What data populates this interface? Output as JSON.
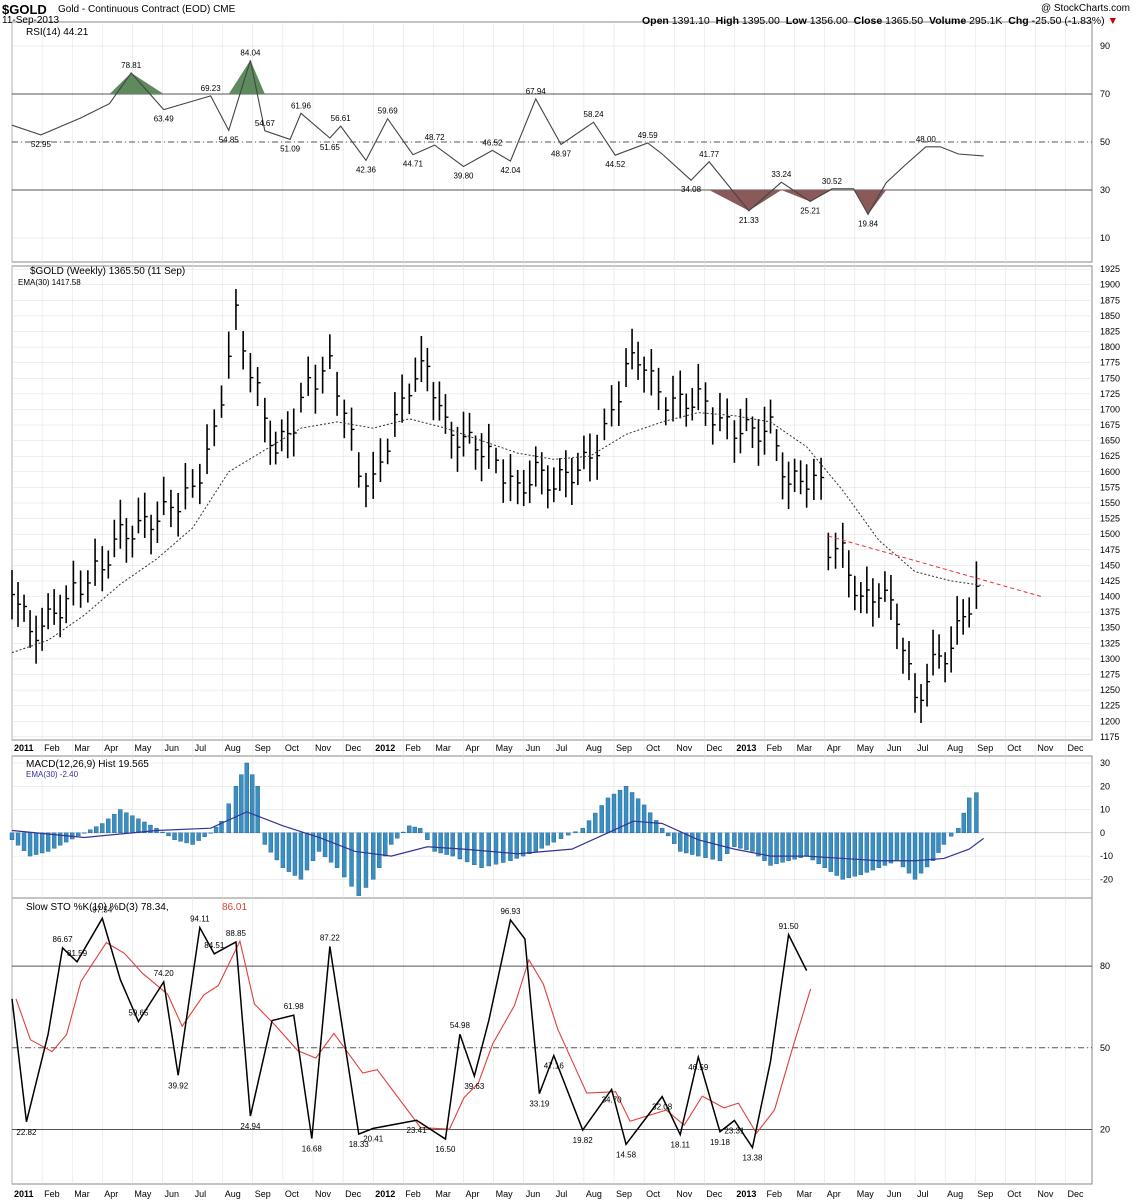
{
  "header": {
    "symbol": "$GOLD",
    "name": "Gold - Continuous Contract (EOD)",
    "exchange": "CME",
    "credit": "@ StockCharts.com",
    "date": "11-Sep-2013",
    "open_label": "Open",
    "open": "1391.10",
    "high_label": "High",
    "high": "1395.00",
    "low_label": "Low",
    "low": "1356.00",
    "close_label": "Close",
    "close": "1365.50",
    "volume_label": "Volume",
    "volume": "295.1K",
    "chg_label": "Chg",
    "chg": "-25.50 (-1.83%)",
    "chg_icon": "down-triangle-icon"
  },
  "colors": {
    "positive_fill": "#5e8a5e",
    "negative_fill": "#8a5a5a",
    "macd_hist": "#3a8fc2",
    "macd_ema": "#333399",
    "sto_d": "#e0403a",
    "trendline": "#e83030",
    "grid": "#dddddd"
  },
  "chart_data": [
    {
      "type": "line",
      "panel": "rsi",
      "legend": "RSI(14) 44.21",
      "ylim": [
        0,
        100
      ],
      "y_ticks": [
        10,
        30,
        50,
        70,
        90
      ],
      "reference_lines": [
        30,
        50,
        70
      ],
      "labels": [
        "52.95",
        "78.81",
        "63.49",
        "69.23",
        "54.85",
        "84.04",
        "54.67",
        "51.09",
        "61.96",
        "51.65",
        "56.61",
        "42.36",
        "59.69",
        "44.71",
        "48.72",
        "39.80",
        "46.52",
        "42.04",
        "67.94",
        "48.97",
        "58.24",
        "44.52",
        "49.59",
        "34.08",
        "41.77",
        "21.33",
        "33.24",
        "25.21",
        "30.52",
        "19.84",
        "48.00"
      ],
      "x": [
        2011.0,
        2011.08,
        2011.19,
        2011.27,
        2011.33,
        2011.42,
        2011.55,
        2011.6,
        2011.66,
        2011.7,
        2011.77,
        2011.8,
        2011.88,
        2011.91,
        2011.98,
        2012.04,
        2012.11,
        2012.17,
        2012.25,
        2012.33,
        2012.38,
        2012.45,
        2012.52,
        2012.61,
        2012.67,
        2012.76,
        2012.8,
        2012.88,
        2012.93,
        2013.04,
        2013.13,
        2013.21,
        2013.27,
        2013.33,
        2013.37,
        2013.42,
        2013.47,
        2013.53,
        2013.57,
        2013.62,
        2013.69
      ],
      "values": [
        57,
        52.95,
        60,
        66,
        78.81,
        63.49,
        69.23,
        54.85,
        84.04,
        54.67,
        51.09,
        61.96,
        51.65,
        56.61,
        42.36,
        59.69,
        44.71,
        48.72,
        39.8,
        46.52,
        42.04,
        67.94,
        48.97,
        58.24,
        44.52,
        49.59,
        45,
        34.08,
        41.77,
        21.33,
        33.24,
        25.21,
        30.52,
        30.52,
        19.84,
        33,
        40,
        48.0,
        48.0,
        45,
        44.21
      ]
    },
    {
      "type": "bar",
      "panel": "price",
      "legend": "$GOLD (Weekly) 1365.50 (11 Sep)",
      "legend2": "EMA(30) 1417.58",
      "ylim": [
        1170,
        1930
      ],
      "y_ticks": [
        1175,
        1200,
        1225,
        1250,
        1275,
        1300,
        1325,
        1350,
        1375,
        1400,
        1425,
        1450,
        1475,
        1500,
        1525,
        1550,
        1575,
        1600,
        1625,
        1650,
        1675,
        1700,
        1725,
        1750,
        1775,
        1800,
        1825,
        1850,
        1875,
        1900,
        1925
      ],
      "close_points": [
        [
          2011.0,
          1420
        ],
        [
          2011.05,
          1340
        ],
        [
          2011.1,
          1362
        ],
        [
          2011.15,
          1395
        ],
        [
          2011.25,
          1450
        ],
        [
          2011.3,
          1500
        ],
        [
          2011.35,
          1510
        ],
        [
          2011.42,
          1535
        ],
        [
          2011.5,
          1570
        ],
        [
          2011.56,
          1660
        ],
        [
          2011.62,
          1850
        ],
        [
          2011.66,
          1760
        ],
        [
          2011.7,
          1690
        ],
        [
          2011.73,
          1630
        ],
        [
          2011.78,
          1680
        ],
        [
          2011.82,
          1740
        ],
        [
          2011.88,
          1770
        ],
        [
          2011.92,
          1700
        ],
        [
          2011.96,
          1600
        ],
        [
          2012.0,
          1580
        ],
        [
          2012.04,
          1650
        ],
        [
          2012.1,
          1740
        ],
        [
          2012.15,
          1770
        ],
        [
          2012.2,
          1670
        ],
        [
          2012.25,
          1650
        ],
        [
          2012.3,
          1640
        ],
        [
          2012.36,
          1600
        ],
        [
          2012.4,
          1570
        ],
        [
          2012.45,
          1600
        ],
        [
          2012.5,
          1580
        ],
        [
          2012.55,
          1600
        ],
        [
          2012.6,
          1620
        ],
        [
          2012.66,
          1690
        ],
        [
          2012.7,
          1770
        ],
        [
          2012.75,
          1780
        ],
        [
          2012.79,
          1720
        ],
        [
          2012.85,
          1710
        ],
        [
          2012.9,
          1720
        ],
        [
          2012.96,
          1680
        ],
        [
          2013.0,
          1670
        ],
        [
          2013.05,
          1665
        ],
        [
          2013.1,
          1670
        ],
        [
          2013.15,
          1580
        ],
        [
          2013.2,
          1590
        ],
        [
          2013.24,
          1580
        ],
        [
          2013.26,
          1480
        ],
        [
          2013.3,
          1470
        ],
        [
          2013.35,
          1390
        ],
        [
          2013.4,
          1410
        ],
        [
          2013.45,
          1370
        ],
        [
          2013.5,
          1230
        ],
        [
          2013.55,
          1290
        ],
        [
          2013.6,
          1320
        ],
        [
          2013.65,
          1390
        ],
        [
          2013.67,
          1410
        ],
        [
          2013.69,
          1365.5
        ]
      ],
      "ema30_points": [
        [
          2011.0,
          1310
        ],
        [
          2011.1,
          1330
        ],
        [
          2011.2,
          1370
        ],
        [
          2011.3,
          1420
        ],
        [
          2011.4,
          1460
        ],
        [
          2011.5,
          1510
        ],
        [
          2011.6,
          1600
        ],
        [
          2011.7,
          1635
        ],
        [
          2011.8,
          1670
        ],
        [
          2011.9,
          1680
        ],
        [
          2012.0,
          1670
        ],
        [
          2012.1,
          1685
        ],
        [
          2012.2,
          1670
        ],
        [
          2012.3,
          1650
        ],
        [
          2012.4,
          1630
        ],
        [
          2012.5,
          1620
        ],
        [
          2012.6,
          1625
        ],
        [
          2012.7,
          1660
        ],
        [
          2012.8,
          1680
        ],
        [
          2012.9,
          1695
        ],
        [
          2013.0,
          1690
        ],
        [
          2013.1,
          1680
        ],
        [
          2013.2,
          1640
        ],
        [
          2013.3,
          1570
        ],
        [
          2013.4,
          1490
        ],
        [
          2013.5,
          1440
        ],
        [
          2013.6,
          1425
        ],
        [
          2013.69,
          1417.58
        ]
      ],
      "trendline": [
        [
          2013.26,
          1497
        ],
        [
          2013.85,
          1400
        ]
      ]
    },
    {
      "type": "bar",
      "panel": "macd",
      "legend": "MACD(12,26,9) Hist 19.565",
      "legend2": "EMA(30) -2.40",
      "ylim": [
        -28,
        33
      ],
      "y_ticks": [
        -20,
        -10,
        0,
        10,
        20,
        30
      ],
      "histogram_points": [
        [
          2011.0,
          -3
        ],
        [
          2011.05,
          -10
        ],
        [
          2011.1,
          -8
        ],
        [
          2011.15,
          -4
        ],
        [
          2011.2,
          0
        ],
        [
          2011.25,
          4
        ],
        [
          2011.3,
          10
        ],
        [
          2011.35,
          6
        ],
        [
          2011.4,
          2
        ],
        [
          2011.45,
          -3
        ],
        [
          2011.5,
          -5
        ],
        [
          2011.55,
          0
        ],
        [
          2011.58,
          5
        ],
        [
          2011.62,
          20
        ],
        [
          2011.65,
          30
        ],
        [
          2011.68,
          20
        ],
        [
          2011.7,
          -5
        ],
        [
          2011.75,
          -15
        ],
        [
          2011.8,
          -20
        ],
        [
          2011.85,
          -8
        ],
        [
          2011.9,
          -15
        ],
        [
          2011.96,
          -27
        ],
        [
          2012.0,
          -20
        ],
        [
          2012.05,
          -5
        ],
        [
          2012.1,
          3
        ],
        [
          2012.13,
          2
        ],
        [
          2012.17,
          -8
        ],
        [
          2012.22,
          -10
        ],
        [
          2012.3,
          -15
        ],
        [
          2012.38,
          -12
        ],
        [
          2012.45,
          -8
        ],
        [
          2012.5,
          -4
        ],
        [
          2012.58,
          2
        ],
        [
          2012.65,
          15
        ],
        [
          2012.7,
          20
        ],
        [
          2012.75,
          12
        ],
        [
          2012.8,
          2
        ],
        [
          2012.85,
          -8
        ],
        [
          2012.9,
          -10
        ],
        [
          2012.96,
          -12
        ],
        [
          2013.0,
          -6
        ],
        [
          2013.05,
          -8
        ],
        [
          2013.1,
          -14
        ],
        [
          2013.15,
          -12
        ],
        [
          2013.2,
          -10
        ],
        [
          2013.25,
          -15
        ],
        [
          2013.3,
          -20
        ],
        [
          2013.35,
          -18
        ],
        [
          2013.4,
          -15
        ],
        [
          2013.45,
          -12
        ],
        [
          2013.5,
          -20
        ],
        [
          2013.55,
          -12
        ],
        [
          2013.58,
          -5
        ],
        [
          2013.62,
          2
        ],
        [
          2013.65,
          15
        ],
        [
          2013.69,
          19.565
        ]
      ],
      "ema30_points": [
        [
          2011.0,
          1
        ],
        [
          2011.2,
          -2
        ],
        [
          2011.4,
          1
        ],
        [
          2011.55,
          2
        ],
        [
          2011.65,
          9
        ],
        [
          2011.75,
          3
        ],
        [
          2011.85,
          -2
        ],
        [
          2011.95,
          -8
        ],
        [
          2012.05,
          -10
        ],
        [
          2012.15,
          -6
        ],
        [
          2012.25,
          -7
        ],
        [
          2012.4,
          -9
        ],
        [
          2012.55,
          -7
        ],
        [
          2012.65,
          0
        ],
        [
          2012.72,
          5
        ],
        [
          2012.8,
          4
        ],
        [
          2012.9,
          -3
        ],
        [
          2013.0,
          -7
        ],
        [
          2013.1,
          -10
        ],
        [
          2013.2,
          -10
        ],
        [
          2013.3,
          -11
        ],
        [
          2013.4,
          -12
        ],
        [
          2013.5,
          -12
        ],
        [
          2013.58,
          -11
        ],
        [
          2013.65,
          -7
        ],
        [
          2013.69,
          -2.4
        ]
      ]
    },
    {
      "type": "line",
      "panel": "slow_sto",
      "legend": "Slow STO %K(10) %D(3) 78.34,",
      "legend_d": "86.01",
      "ylim": [
        0,
        105
      ],
      "y_ticks": [
        20,
        50,
        80
      ],
      "reference_lines": [
        20,
        50,
        80
      ],
      "labels": [
        "22.82",
        "86.67",
        "81.59",
        "97.54",
        "59.65",
        "74.20",
        "39.92",
        "94.11",
        "84.51",
        "88.85",
        "24.94",
        "61.98",
        "16.68",
        "87.22",
        "18.33",
        "20.41",
        "23.41",
        "16.50",
        "54.98",
        "39.63",
        "96.93",
        "33.19",
        "47.16",
        "19.82",
        "34.70",
        "14.58",
        "32.08",
        "18.11",
        "46.59",
        "19.18",
        "23.31",
        "13.38",
        "91.50"
      ],
      "x": [
        2011.0,
        2011.04,
        2011.1,
        2011.14,
        2011.18,
        2011.25,
        2011.3,
        2011.35,
        2011.42,
        2011.46,
        2011.52,
        2011.56,
        2011.62,
        2011.66,
        2011.72,
        2011.78,
        2011.83,
        2011.88,
        2011.96,
        2012.0,
        2012.12,
        2012.2,
        2012.24,
        2012.28,
        2012.32,
        2012.38,
        2012.42,
        2012.46,
        2012.5,
        2012.58,
        2012.66,
        2012.7,
        2012.8,
        2012.85,
        2012.9,
        2012.96,
        2013.0,
        2013.05,
        2013.1,
        2013.15,
        2013.2,
        2013.25,
        2013.3,
        2013.35,
        2013.4,
        2013.45,
        2013.5,
        2013.55,
        2013.6,
        2013.65,
        2013.67,
        2013.69
      ],
      "k_values": [
        68,
        22.82,
        55,
        86.67,
        81.59,
        97.54,
        75,
        59.65,
        74.2,
        39.92,
        94.11,
        84.51,
        88.85,
        24.94,
        60,
        61.98,
        16.68,
        87.22,
        18.33,
        20.41,
        23.41,
        16.5,
        54.98,
        39.63,
        60,
        96.93,
        90,
        33.19,
        47.16,
        19.82,
        34.7,
        14.58,
        32.08,
        18.11,
        46.59,
        19.18,
        23.31,
        13.38,
        45,
        91.5,
        78.34,
        78.34,
        78.34,
        78.34,
        78.34,
        78.34,
        78.34,
        78.34,
        78.34,
        78.34,
        78.34,
        78.34
      ]
    }
  ],
  "x_axis": {
    "ticks": [
      "2011",
      "Feb",
      "Mar",
      "Apr",
      "May",
      "Jun",
      "Jul",
      "Aug",
      "Sep",
      "Oct",
      "Nov",
      "Dec",
      "2012",
      "Feb",
      "Mar",
      "Apr",
      "May",
      "Jun",
      "Jul",
      "Aug",
      "Sep",
      "Oct",
      "Nov",
      "Dec",
      "2013",
      "Feb",
      "Mar",
      "Apr",
      "May",
      "Jun",
      "Jul",
      "Aug",
      "Sep",
      "Oct",
      "Nov",
      "Dec"
    ]
  }
}
